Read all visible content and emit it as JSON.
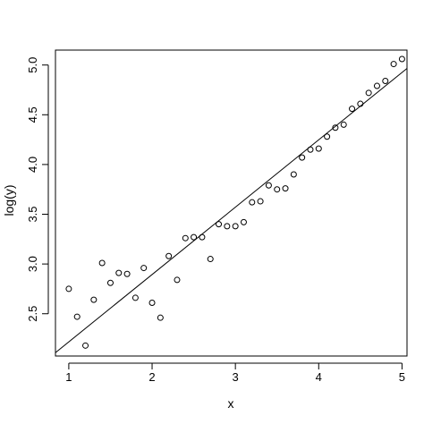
{
  "chart_data": {
    "type": "scatter",
    "title": "",
    "xlabel": "x",
    "ylabel": "log(y)",
    "xlim": [
      0.84,
      5.06
    ],
    "ylim": [
      2.075,
      5.15
    ],
    "x_ticks": [
      1,
      2,
      3,
      4,
      5
    ],
    "y_ticks": [
      2.5,
      3.0,
      3.5,
      4.0,
      4.5,
      5.0
    ],
    "x_tick_labels": [
      "1",
      "2",
      "3",
      "4",
      "5"
    ],
    "y_tick_labels": [
      "2.5",
      "3.0",
      "3.5",
      "4.0",
      "4.5",
      "5.0"
    ],
    "grid": false,
    "points": {
      "x": [
        1.0,
        1.1,
        1.2,
        1.3,
        1.4,
        1.5,
        1.6,
        1.7,
        1.8,
        1.9,
        2.0,
        2.1,
        2.2,
        2.3,
        2.4,
        2.5,
        2.6,
        2.7,
        2.8,
        2.9,
        3.0,
        3.1,
        3.2,
        3.3,
        3.4,
        3.5,
        3.6,
        3.7,
        3.8,
        3.9,
        4.0,
        4.1,
        4.2,
        4.3,
        4.4,
        4.5,
        4.6,
        4.7,
        4.8,
        4.9,
        5.0
      ],
      "y": [
        2.75,
        2.47,
        2.18,
        2.64,
        3.01,
        2.81,
        2.91,
        2.9,
        2.66,
        2.96,
        2.61,
        2.46,
        3.08,
        2.84,
        3.26,
        3.27,
        3.27,
        3.05,
        3.4,
        3.38,
        3.38,
        3.42,
        3.62,
        3.63,
        3.79,
        3.75,
        3.76,
        3.9,
        4.07,
        4.15,
        4.16,
        4.28,
        4.37,
        4.4,
        4.56,
        4.61,
        4.72,
        4.79,
        4.84,
        5.01,
        5.06
      ]
    },
    "fit_line": {
      "intercept": 1.54,
      "slope": 0.677
    }
  }
}
